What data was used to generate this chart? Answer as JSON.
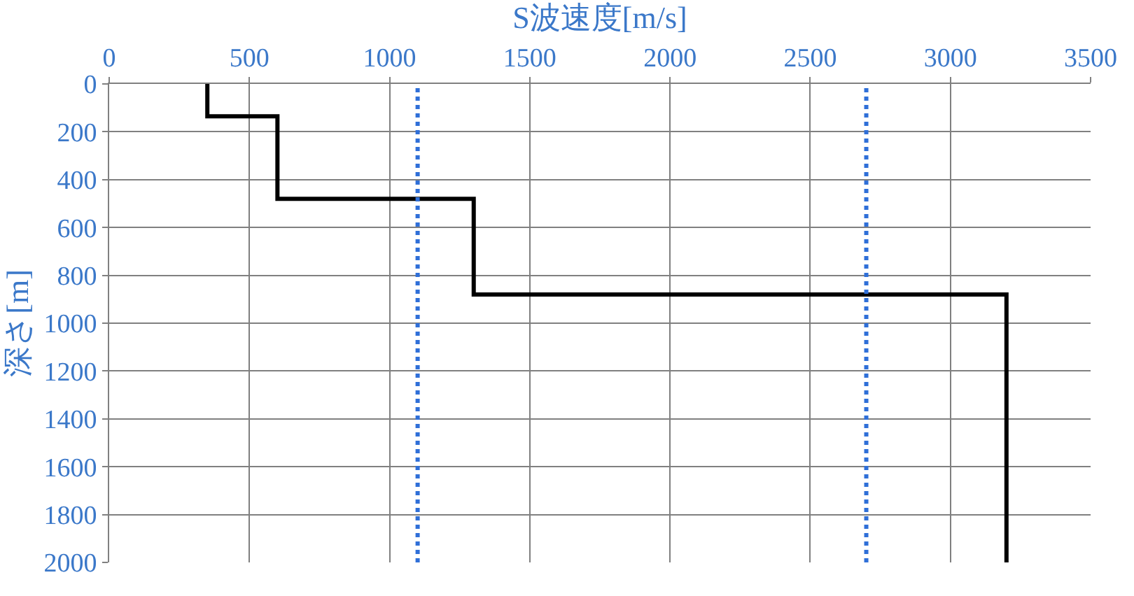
{
  "chart_data": {
    "type": "line",
    "xlabel": "S波速度[m/s]",
    "ylabel": "深さ[m]",
    "x": [
      350,
      350,
      600,
      600,
      1300,
      1300,
      3200,
      3200
    ],
    "series": [
      {
        "color": "#000000",
        "values": [
          0,
          135,
          135,
          480,
          480,
          880,
          880,
          2000
        ]
      }
    ],
    "xlim": [
      0,
      3500
    ],
    "xticks": [
      0,
      500,
      1000,
      1500,
      2000,
      2500,
      3000,
      3500
    ],
    "ylim": [
      2000,
      0
    ],
    "yticks": [
      0,
      200,
      400,
      600,
      800,
      1000,
      1200,
      1400,
      1600,
      1800,
      2000
    ],
    "ref_lines": [
      {
        "axis": "x",
        "value": 1100,
        "color": "#2f6fd8",
        "line_style": "dotted"
      },
      {
        "axis": "x",
        "value": 2700,
        "color": "#2f6fd8",
        "line_style": "dotted"
      }
    ],
    "grid": true,
    "marker": "none",
    "line_style": "solid"
  }
}
